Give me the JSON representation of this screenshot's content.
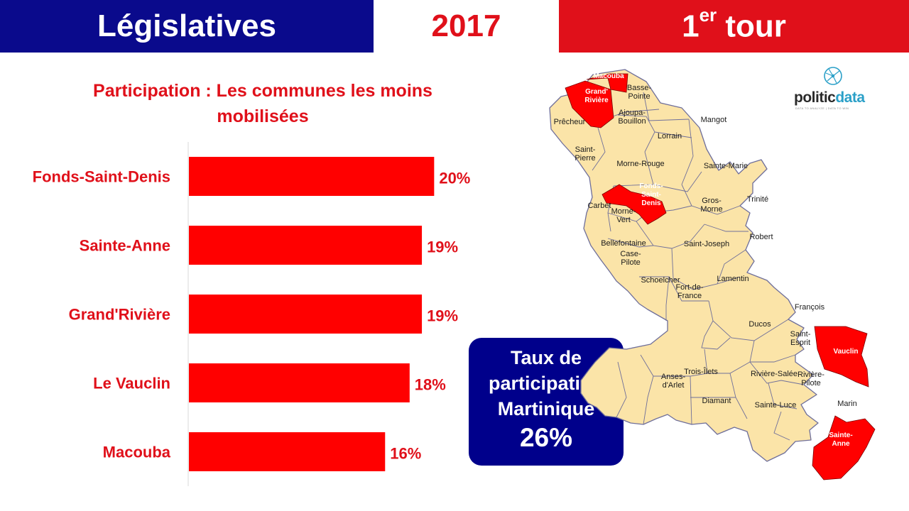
{
  "header": {
    "left": "Législatives",
    "year": "2017",
    "round_num": "1",
    "round_sup": "er",
    "round_word": "tour"
  },
  "colors": {
    "blue": "#0a0a8c",
    "red": "#e0101a",
    "bar": "#ff0000",
    "map_fill": "#fbe4a8",
    "map_highlight": "#ff0000"
  },
  "chart_data": {
    "type": "bar",
    "orientation": "horizontal",
    "title": "Participation : Les communes les moins mobilisées",
    "categories": [
      "Fonds-Saint-Denis",
      "Sainte-Anne",
      "Grand'Rivière",
      "Le Vauclin",
      "Macouba"
    ],
    "values": [
      20,
      19,
      19,
      18,
      16
    ],
    "value_labels": [
      "20%",
      "19%",
      "19%",
      "18%",
      "16%"
    ],
    "unit": "%",
    "xlim": [
      0,
      30
    ],
    "grid": false
  },
  "summary": {
    "label": "Taux de participation Martinique",
    "value": "26%"
  },
  "logo": {
    "name_part1": "politic",
    "name_part2": "data",
    "tagline": "DATA TO ANALYZE | DATA TO WIN"
  },
  "map": {
    "icon": "martinique-map",
    "communes": [
      {
        "name": "Macouba",
        "highlight": true
      },
      {
        "name": "Grand'\nRivière",
        "highlight": true
      },
      {
        "name": "Basse-\nPointe",
        "highlight": false
      },
      {
        "name": "Prêcheur",
        "highlight": false
      },
      {
        "name": "Ajoupa-\nBouillon",
        "highlight": false
      },
      {
        "name": "Mangot",
        "highlight": false
      },
      {
        "name": "Lorrain",
        "highlight": false
      },
      {
        "name": "Saint-\nPierre",
        "highlight": false
      },
      {
        "name": "Morne-Rouge",
        "highlight": false
      },
      {
        "name": "Sainte-Marie",
        "highlight": false
      },
      {
        "name": "Fonds-\nSaint-\nDenis",
        "highlight": true
      },
      {
        "name": "Carbet",
        "highlight": false
      },
      {
        "name": "Morne-\nVert",
        "highlight": false
      },
      {
        "name": "Gros-\nMorne",
        "highlight": false
      },
      {
        "name": "Trinité",
        "highlight": false
      },
      {
        "name": "Robert",
        "highlight": false
      },
      {
        "name": "Bellefontaine",
        "highlight": false
      },
      {
        "name": "Saint-Joseph",
        "highlight": false
      },
      {
        "name": "Case-\nPilote",
        "highlight": false
      },
      {
        "name": "Schoelcher",
        "highlight": false
      },
      {
        "name": "Lamentin",
        "highlight": false
      },
      {
        "name": "Fort-de-\nFrance",
        "highlight": false
      },
      {
        "name": "François",
        "highlight": false
      },
      {
        "name": "Ducos",
        "highlight": false
      },
      {
        "name": "Saint-\nEsprit",
        "highlight": false
      },
      {
        "name": "Vauclin",
        "highlight": true
      },
      {
        "name": "Trois-Îlets",
        "highlight": false
      },
      {
        "name": "Rivière-Salée",
        "highlight": false
      },
      {
        "name": "Anses-\nd'Arlet",
        "highlight": false
      },
      {
        "name": "Rivière-\nPilote",
        "highlight": false
      },
      {
        "name": "Diamant",
        "highlight": false
      },
      {
        "name": "Sainte-Luce",
        "highlight": false
      },
      {
        "name": "Marin",
        "highlight": false
      },
      {
        "name": "Sainte-\nAnne",
        "highlight": true
      }
    ]
  }
}
